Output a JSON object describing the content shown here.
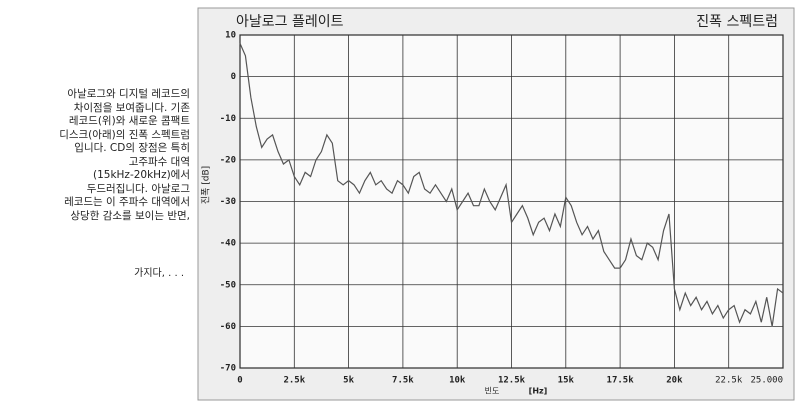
{
  "side_text": {
    "lines": [
      "아날로그와 디지털 레코드의",
      "차이점을 보여줍니다. 기존",
      "레코드(위)와 새로운 콤팩트",
      "디스크(아래)의 진폭 스펙트럼",
      "입니다. CD의 장점은 특히",
      "고주파수 대역",
      "(15kHz-20kHz)에서",
      "두드러집니다. 아날로그",
      "레코드는 이 주파수 대역에서",
      "상당한 감소를 보이는 반면,"
    ],
    "trailer": "가지다, . . ."
  },
  "chart_data": {
    "type": "line",
    "title": "아날로그 플레이트",
    "subtitle": "진폭 스펙트럼",
    "y_label": "진폭 [dB]",
    "x_label": "빈도",
    "x_unit": "[Hz]",
    "grid": true,
    "xlim": [
      0,
      25000
    ],
    "xticks": [
      0,
      {
        "value": 2500,
        "label": "2.5k"
      },
      {
        "value": 5000,
        "label": "5k"
      },
      {
        "value": 7500,
        "label": "7.5k"
      },
      {
        "value": 10000,
        "label": "10k"
      },
      {
        "value": 12500,
        "label": "12.5k"
      },
      {
        "value": 15000,
        "label": "15k"
      },
      {
        "value": 17500,
        "label": "17.5k"
      },
      {
        "value": 20000,
        "label": "20k"
      },
      {
        "value": 22500,
        "label": "22.5k"
      },
      {
        "value": 25000,
        "label": "25.000"
      }
    ],
    "ylim": [
      -70,
      10
    ],
    "yticks": [
      10,
      0,
      -10,
      -20,
      -30,
      -40,
      -50,
      -60,
      -70
    ],
    "x": [
      0,
      250,
      500,
      750,
      1000,
      1250,
      1500,
      1750,
      2000,
      2250,
      2500,
      2750,
      3000,
      3250,
      3500,
      3750,
      4000,
      4250,
      4500,
      4750,
      5000,
      5250,
      5500,
      5750,
      6000,
      6250,
      6500,
      6750,
      7000,
      7250,
      7500,
      7750,
      8000,
      8250,
      8500,
      8750,
      9000,
      9250,
      9500,
      9750,
      10000,
      10250,
      10500,
      10750,
      11000,
      11250,
      11500,
      11750,
      12000,
      12250,
      12500,
      12750,
      13000,
      13250,
      13500,
      13750,
      14000,
      14250,
      14500,
      14750,
      15000,
      15250,
      15500,
      15750,
      16000,
      16250,
      16500,
      16750,
      17000,
      17250,
      17500,
      17750,
      18000,
      18250,
      18500,
      18750,
      19000,
      19250,
      19500,
      19750,
      20000,
      20250,
      20500,
      20750,
      21000,
      21250,
      21500,
      21750,
      22000,
      22250,
      22500,
      22750,
      23000,
      23250,
      23500,
      23750,
      24000,
      24250,
      24500,
      24750,
      25000
    ],
    "series": [
      {
        "color": "#555555",
        "values": [
          8,
          5,
          -5,
          -12,
          -17,
          -15,
          -14,
          -18,
          -21,
          -20,
          -24,
          -26,
          -23,
          -24,
          -20,
          -18,
          -14,
          -16,
          -25,
          -26,
          -25,
          -26,
          -28,
          -25,
          -23,
          -26,
          -25,
          -27,
          -28,
          -25,
          -26,
          -28,
          -24,
          -23,
          -27,
          -28,
          -26,
          -28,
          -30,
          -27,
          -32,
          -30,
          -28,
          -31,
          -31,
          -27,
          -30,
          -32,
          -29,
          -26,
          -35,
          -33,
          -31,
          -34,
          -38,
          -35,
          -34,
          -37,
          -33,
          -36,
          -29,
          -31,
          -35,
          -38,
          -36,
          -39,
          -37,
          -42,
          -44,
          -46,
          -46,
          -44,
          -39,
          -43,
          -44,
          -40,
          -41,
          -44,
          -37,
          -33,
          -51,
          -56,
          -52,
          -55,
          -53,
          -56,
          -54,
          -57,
          -55,
          -58,
          -56,
          -55,
          -59,
          -56,
          -57,
          -54,
          -59,
          -53,
          -60,
          -51,
          -52
        ]
      }
    ]
  }
}
